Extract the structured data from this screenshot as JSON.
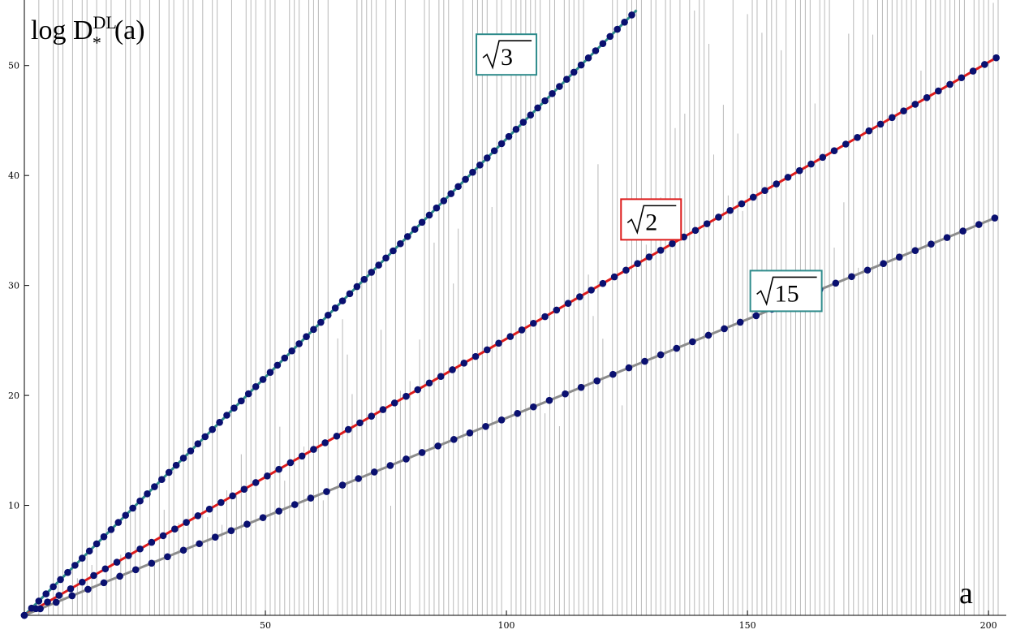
{
  "chart_data": {
    "type": "scatter",
    "title": "",
    "ylabel": {
      "base": "log D",
      "sub": "*",
      "sup": "DL",
      "arg": "(a)"
    },
    "xlabel": "a",
    "xlim": [
      0,
      202
    ],
    "ylim": [
      0,
      55
    ],
    "xticks": [
      50,
      100,
      150,
      200
    ],
    "yticks": [
      10,
      20,
      30,
      40,
      50
    ],
    "grid": false,
    "background_lines": {
      "description_free": true,
      "color": "#b9b9b9"
    },
    "series": [
      {
        "name": "√3",
        "color_line": "#2e8b8b",
        "color_box": "#2e8b8b",
        "label": {
          "radicand": "3",
          "a": 100,
          "y": 51
        },
        "slope": 0.4333,
        "x_start": 0,
        "x_end": 127,
        "x_step": 1.5
      },
      {
        "name": "√2",
        "color_line": "#dd1c1c",
        "color_box": "#dd1c1c",
        "label": {
          "radicand": "2",
          "a": 130,
          "y": 36
        },
        "slope": 0.2515,
        "x_start": 0,
        "x_end": 202,
        "x_step": 2.4
      },
      {
        "name": "√15",
        "color_line": "#8c8c8c",
        "color_box": "#2e8b8b",
        "label": {
          "radicand": "15",
          "a": 158,
          "y": 29.5
        },
        "slope": 0.1795,
        "x_start": 0,
        "x_end": 202,
        "x_step": 3.3
      }
    ],
    "marker_color": "#0a1070"
  }
}
